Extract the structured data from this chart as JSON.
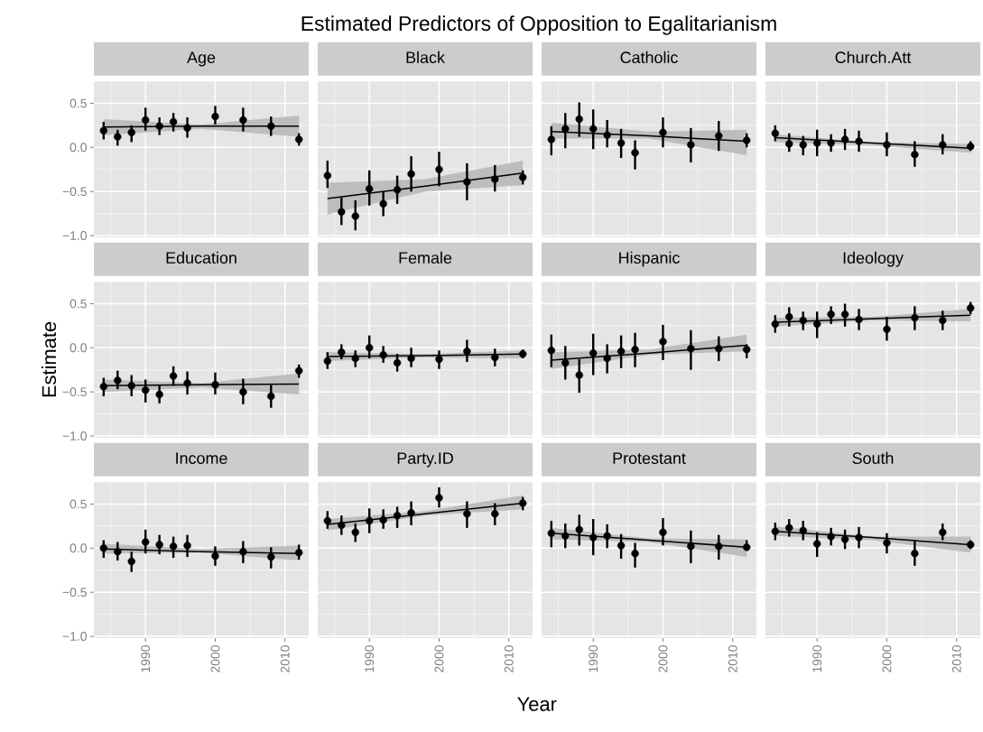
{
  "chart_data": [
    {
      "type": "scatter",
      "title": "Age",
      "annotations": [
        "Estimated Predictors of Opposition to Egalitarianism"
      ],
      "x": [
        1984,
        1986,
        1988,
        1990,
        1992,
        1994,
        1996,
        2000,
        2004,
        2008,
        2012
      ],
      "xlim": [
        1982.6,
        2013.4
      ],
      "ylim": [
        -1.02,
        0.75
      ],
      "xticks": [
        1990,
        2000,
        2010
      ],
      "yticks": [
        {
          "value": -1,
          "label": "−1.0"
        },
        {
          "value": -0.5,
          "label": "−0.5"
        },
        {
          "value": 0,
          "label": "0.0"
        },
        {
          "value": 0.5,
          "label": "0.5"
        }
      ],
      "grid": true,
      "tick_labels": "y",
      "series": [
        {
          "type": "line",
          "color": "#000000",
          "x": [
            1984,
            1998,
            2012
          ],
          "values": [
            0.23,
            0.24,
            0.24
          ],
          "lower": [
            0.14,
            0.21,
            0.12
          ],
          "upper": [
            0.32,
            0.26,
            0.36
          ]
        },
        {
          "color": "#000000",
          "marker": "circle",
          "values": [
            0.19,
            0.12,
            0.17,
            0.31,
            0.24,
            0.29,
            0.22,
            0.35,
            0.31,
            0.24,
            0.09
          ],
          "errors": [
            [
              0.09,
              0.29
            ],
            [
              0.02,
              0.2
            ],
            [
              0.06,
              0.25
            ],
            [
              0.19,
              0.45
            ],
            [
              0.14,
              0.34
            ],
            [
              0.18,
              0.39
            ],
            [
              0.11,
              0.34
            ],
            [
              0.26,
              0.47
            ],
            [
              0.18,
              0.45
            ],
            [
              0.13,
              0.35
            ],
            [
              0.02,
              0.16
            ]
          ]
        }
      ]
    },
    {
      "type": "scatter",
      "title": "Black",
      "x": [
        1984,
        1986,
        1988,
        1990,
        1992,
        1994,
        1996,
        2000,
        2004,
        2008,
        2012
      ],
      "xlim": [
        1982.6,
        2013.4
      ],
      "ylim": [
        -1.02,
        0.75
      ],
      "xticks": [
        1990,
        2000,
        2010
      ],
      "yticks": [
        -1,
        -0.5,
        0,
        0.5
      ],
      "grid": true,
      "tick_labels": false,
      "series": [
        {
          "type": "line",
          "color": "#000000",
          "x": [
            1984,
            1998,
            2012
          ],
          "values": [
            -0.58,
            -0.44,
            -0.29
          ],
          "lower": [
            -0.76,
            -0.5,
            -0.43
          ],
          "upper": [
            -0.4,
            -0.36,
            -0.15
          ]
        },
        {
          "color": "#000000",
          "marker": "circle",
          "values": [
            -0.32,
            -0.73,
            -0.78,
            -0.47,
            -0.64,
            -0.48,
            -0.3,
            -0.25,
            -0.39,
            -0.36,
            -0.34
          ],
          "errors": [
            [
              -0.46,
              -0.15
            ],
            [
              -0.88,
              -0.57
            ],
            [
              -0.94,
              -0.6
            ],
            [
              -0.66,
              -0.26
            ],
            [
              -0.78,
              -0.5
            ],
            [
              -0.64,
              -0.32
            ],
            [
              -0.5,
              -0.1
            ],
            [
              -0.44,
              -0.05
            ],
            [
              -0.6,
              -0.18
            ],
            [
              -0.5,
              -0.2
            ],
            [
              -0.42,
              -0.26
            ]
          ]
        }
      ]
    },
    {
      "type": "scatter",
      "title": "Catholic",
      "x": [
        1984,
        1986,
        1988,
        1990,
        1992,
        1994,
        1996,
        2000,
        2004,
        2008,
        2012
      ],
      "xlim": [
        1982.6,
        2013.4
      ],
      "ylim": [
        -1.02,
        0.75
      ],
      "xticks": [
        1990,
        2000,
        2010
      ],
      "yticks": [
        -1,
        -0.5,
        0,
        0.5
      ],
      "grid": true,
      "tick_labels": false,
      "series": [
        {
          "type": "line",
          "color": "#000000",
          "x": [
            1984,
            1998,
            2012
          ],
          "values": [
            0.18,
            0.13,
            0.07
          ],
          "lower": [
            0.1,
            0.1,
            -0.09
          ],
          "upper": [
            0.28,
            0.18,
            0.2
          ]
        },
        {
          "color": "#000000",
          "marker": "circle",
          "values": [
            0.09,
            0.21,
            0.32,
            0.21,
            0.14,
            0.05,
            -0.06,
            0.17,
            0.03,
            0.13,
            0.08
          ],
          "errors": [
            [
              -0.09,
              0.24
            ],
            [
              -0.01,
              0.39
            ],
            [
              0.12,
              0.51
            ],
            [
              -0.02,
              0.43
            ],
            [
              0.0,
              0.31
            ],
            [
              -0.12,
              0.21
            ],
            [
              -0.25,
              0.08
            ],
            [
              0.0,
              0.34
            ],
            [
              -0.17,
              0.22
            ],
            [
              -0.04,
              0.3
            ],
            [
              0.0,
              0.16
            ]
          ]
        }
      ]
    },
    {
      "type": "scatter",
      "title": "Church.Att",
      "x": [
        1984,
        1986,
        1988,
        1990,
        1992,
        1994,
        1996,
        2000,
        2004,
        2008,
        2012
      ],
      "xlim": [
        1982.6,
        2013.4
      ],
      "ylim": [
        -1.02,
        0.75
      ],
      "xticks": [
        1990,
        2000,
        2010
      ],
      "yticks": [
        -1,
        -0.5,
        0,
        0.5
      ],
      "grid": true,
      "tick_labels": false,
      "series": [
        {
          "type": "line",
          "color": "#000000",
          "x": [
            1984,
            1998,
            2012
          ],
          "values": [
            0.11,
            0.05,
            -0.01
          ],
          "lower": [
            0.06,
            0.02,
            -0.06
          ],
          "upper": [
            0.15,
            0.06,
            0.04
          ]
        },
        {
          "color": "#000000",
          "marker": "circle",
          "values": [
            0.16,
            0.04,
            0.03,
            0.05,
            0.05,
            0.09,
            0.07,
            0.03,
            -0.08,
            0.03,
            0.01
          ],
          "errors": [
            [
              0.07,
              0.25
            ],
            [
              -0.05,
              0.16
            ],
            [
              -0.09,
              0.13
            ],
            [
              -0.1,
              0.2
            ],
            [
              -0.05,
              0.15
            ],
            [
              -0.03,
              0.21
            ],
            [
              -0.05,
              0.19
            ],
            [
              -0.1,
              0.17
            ],
            [
              -0.22,
              0.07
            ],
            [
              -0.08,
              0.15
            ],
            [
              -0.04,
              0.07
            ]
          ]
        }
      ]
    },
    {
      "type": "scatter",
      "title": "Education",
      "ylabel": "Estimate",
      "x": [
        1984,
        1986,
        1988,
        1990,
        1992,
        1994,
        1996,
        2000,
        2004,
        2008,
        2012
      ],
      "xlim": [
        1982.6,
        2013.4
      ],
      "ylim": [
        -1.02,
        0.75
      ],
      "xticks": [
        1990,
        2000,
        2010
      ],
      "yticks": [
        {
          "value": -1,
          "label": "−1.0"
        },
        {
          "value": -0.5,
          "label": "−0.5"
        },
        {
          "value": 0,
          "label": "0.0"
        },
        {
          "value": 0.5,
          "label": "0.5"
        }
      ],
      "grid": true,
      "tick_labels": "y",
      "series": [
        {
          "type": "line",
          "color": "#000000",
          "x": [
            1984,
            1998,
            2012
          ],
          "values": [
            -0.43,
            -0.42,
            -0.41
          ],
          "lower": [
            -0.5,
            -0.45,
            -0.53
          ],
          "upper": [
            -0.36,
            -0.4,
            -0.29
          ]
        },
        {
          "color": "#000000",
          "marker": "circle",
          "values": [
            -0.44,
            -0.37,
            -0.43,
            -0.48,
            -0.53,
            -0.32,
            -0.4,
            -0.42,
            -0.5,
            -0.55,
            -0.26
          ],
          "errors": [
            [
              -0.55,
              -0.34
            ],
            [
              -0.47,
              -0.26
            ],
            [
              -0.55,
              -0.31
            ],
            [
              -0.62,
              -0.36
            ],
            [
              -0.63,
              -0.42
            ],
            [
              -0.43,
              -0.21
            ],
            [
              -0.53,
              -0.27
            ],
            [
              -0.53,
              -0.28
            ],
            [
              -0.64,
              -0.35
            ],
            [
              -0.68,
              -0.42
            ],
            [
              -0.34,
              -0.19
            ]
          ]
        }
      ]
    },
    {
      "type": "scatter",
      "title": "Female",
      "x": [
        1984,
        1986,
        1988,
        1990,
        1992,
        1994,
        1996,
        2000,
        2004,
        2008,
        2012
      ],
      "xlim": [
        1982.6,
        2013.4
      ],
      "ylim": [
        -1.02,
        0.75
      ],
      "xticks": [
        1990,
        2000,
        2010
      ],
      "yticks": [
        -1,
        -0.5,
        0,
        0.5
      ],
      "grid": true,
      "tick_labels": false,
      "series": [
        {
          "type": "line",
          "color": "#000000",
          "x": [
            1984,
            1998,
            2012
          ],
          "values": [
            -0.1,
            -0.09,
            -0.07
          ],
          "lower": [
            -0.15,
            -0.11,
            -0.12
          ],
          "upper": [
            -0.05,
            -0.07,
            -0.03
          ]
        },
        {
          "color": "#000000",
          "marker": "circle",
          "values": [
            -0.15,
            -0.05,
            -0.12,
            0.0,
            -0.08,
            -0.17,
            -0.12,
            -0.13,
            -0.04,
            -0.11,
            -0.07
          ],
          "errors": [
            [
              -0.24,
              -0.05
            ],
            [
              -0.13,
              0.04
            ],
            [
              -0.22,
              -0.03
            ],
            [
              -0.12,
              0.14
            ],
            [
              -0.17,
              0.02
            ],
            [
              -0.27,
              -0.07
            ],
            [
              -0.22,
              0.0
            ],
            [
              -0.24,
              -0.03
            ],
            [
              -0.16,
              0.09
            ],
            [
              -0.21,
              -0.01
            ],
            [
              -0.12,
              -0.02
            ]
          ]
        }
      ]
    },
    {
      "type": "scatter",
      "title": "Hispanic",
      "x": [
        1984,
        1986,
        1988,
        1990,
        1992,
        1994,
        1996,
        2000,
        2004,
        2008,
        2012
      ],
      "xlim": [
        1982.6,
        2013.4
      ],
      "ylim": [
        -1.02,
        0.75
      ],
      "xticks": [
        1990,
        2000,
        2010
      ],
      "yticks": [
        -1,
        -0.5,
        0,
        0.5
      ],
      "grid": true,
      "tick_labels": false,
      "series": [
        {
          "type": "line",
          "color": "#000000",
          "x": [
            1984,
            1998,
            2012
          ],
          "values": [
            -0.14,
            -0.06,
            0.03
          ],
          "lower": [
            -0.24,
            -0.08,
            -0.04
          ],
          "upper": [
            -0.05,
            -0.02,
            0.15
          ]
        },
        {
          "color": "#000000",
          "marker": "circle",
          "values": [
            -0.03,
            -0.17,
            -0.31,
            -0.06,
            -0.12,
            -0.04,
            -0.02,
            0.07,
            -0.01,
            -0.01,
            -0.02
          ],
          "errors": [
            [
              -0.22,
              0.15
            ],
            [
              -0.36,
              0.02
            ],
            [
              -0.51,
              -0.13
            ],
            [
              -0.31,
              0.16
            ],
            [
              -0.29,
              0.04
            ],
            [
              -0.23,
              0.14
            ],
            [
              -0.22,
              0.17
            ],
            [
              -0.14,
              0.26
            ],
            [
              -0.25,
              0.2
            ],
            [
              -0.15,
              0.13
            ],
            [
              -0.12,
              0.04
            ]
          ]
        }
      ]
    },
    {
      "type": "scatter",
      "title": "Ideology",
      "x": [
        1984,
        1986,
        1988,
        1990,
        1992,
        1994,
        1996,
        2000,
        2004,
        2008,
        2012
      ],
      "xlim": [
        1982.6,
        2013.4
      ],
      "ylim": [
        -1.02,
        0.75
      ],
      "xticks": [
        1990,
        2000,
        2010
      ],
      "yticks": [
        -1,
        -0.5,
        0,
        0.5
      ],
      "grid": true,
      "tick_labels": false,
      "series": [
        {
          "type": "line",
          "color": "#000000",
          "x": [
            1984,
            1998,
            2012
          ],
          "values": [
            0.29,
            0.33,
            0.37
          ],
          "lower": [
            0.24,
            0.31,
            0.3
          ],
          "upper": [
            0.34,
            0.35,
            0.44
          ]
        },
        {
          "color": "#000000",
          "marker": "circle",
          "values": [
            0.27,
            0.35,
            0.31,
            0.27,
            0.38,
            0.38,
            0.32,
            0.21,
            0.34,
            0.31,
            0.45
          ],
          "errors": [
            [
              0.17,
              0.37
            ],
            [
              0.24,
              0.46
            ],
            [
              0.2,
              0.41
            ],
            [
              0.11,
              0.41
            ],
            [
              0.27,
              0.47
            ],
            [
              0.24,
              0.5
            ],
            [
              0.2,
              0.44
            ],
            [
              0.08,
              0.35
            ],
            [
              0.2,
              0.47
            ],
            [
              0.2,
              0.42
            ],
            [
              0.38,
              0.52
            ]
          ]
        }
      ]
    },
    {
      "type": "scatter",
      "title": "Income",
      "x": [
        1984,
        1986,
        1988,
        1990,
        1992,
        1994,
        1996,
        2000,
        2004,
        2008,
        2012
      ],
      "xlim": [
        1982.6,
        2013.4
      ],
      "ylim": [
        -1.02,
        0.75
      ],
      "xticks": [
        1990,
        2000,
        2010
      ],
      "yticks": [
        {
          "value": -1,
          "label": "−1.0"
        },
        {
          "value": -0.5,
          "label": "−0.5"
        },
        {
          "value": 0,
          "label": "0.0"
        },
        {
          "value": 0.5,
          "label": "0.5"
        }
      ],
      "grid": true,
      "series": [
        {
          "type": "line",
          "color": "#000000",
          "x": [
            1984,
            1998,
            2012
          ],
          "values": [
            -0.01,
            -0.04,
            -0.06
          ],
          "lower": [
            -0.06,
            -0.05,
            -0.14
          ],
          "upper": [
            0.05,
            -0.01,
            0.03
          ]
        },
        {
          "color": "#000000",
          "marker": "circle",
          "values": [
            0.0,
            -0.04,
            -0.15,
            0.07,
            0.04,
            0.02,
            0.03,
            -0.09,
            -0.04,
            -0.1,
            -0.05
          ],
          "errors": [
            [
              -0.11,
              0.09
            ],
            [
              -0.14,
              0.07
            ],
            [
              -0.27,
              -0.04
            ],
            [
              -0.06,
              0.21
            ],
            [
              -0.07,
              0.15
            ],
            [
              -0.11,
              0.13
            ],
            [
              -0.1,
              0.15
            ],
            [
              -0.2,
              0.02
            ],
            [
              -0.17,
              0.08
            ],
            [
              -0.23,
              0.01
            ],
            [
              -0.13,
              0.04
            ]
          ]
        }
      ]
    },
    {
      "type": "scatter",
      "title": "Party.ID",
      "xlabel": "Year",
      "x": [
        1984,
        1986,
        1988,
        1990,
        1992,
        1994,
        1996,
        2000,
        2004,
        2008,
        2012
      ],
      "xlim": [
        1982.6,
        2013.4
      ],
      "ylim": [
        -1.02,
        0.75
      ],
      "xticks": [
        1990,
        2000,
        2010
      ],
      "yticks": [
        -1,
        -0.5,
        0,
        0.5
      ],
      "grid": true,
      "tick_labels": "x",
      "series": [
        {
          "type": "line",
          "color": "#000000",
          "x": [
            1984,
            1998,
            2012
          ],
          "values": [
            0.27,
            0.39,
            0.51
          ],
          "lower": [
            0.2,
            0.37,
            0.44
          ],
          "upper": [
            0.33,
            0.42,
            0.6
          ]
        },
        {
          "color": "#000000",
          "marker": "circle",
          "values": [
            0.31,
            0.26,
            0.18,
            0.31,
            0.32,
            0.37,
            0.4,
            0.57,
            0.39,
            0.39,
            0.51
          ],
          "errors": [
            [
              0.22,
              0.42
            ],
            [
              0.15,
              0.37
            ],
            [
              0.07,
              0.28
            ],
            [
              0.17,
              0.45
            ],
            [
              0.22,
              0.44
            ],
            [
              0.23,
              0.47
            ],
            [
              0.26,
              0.53
            ],
            [
              0.46,
              0.69
            ],
            [
              0.23,
              0.53
            ],
            [
              0.26,
              0.51
            ],
            [
              0.43,
              0.58
            ]
          ]
        }
      ]
    },
    {
      "type": "scatter",
      "title": "Protestant",
      "x": [
        1984,
        1986,
        1988,
        1990,
        1992,
        1994,
        1996,
        2000,
        2004,
        2008,
        2012
      ],
      "xlim": [
        1982.6,
        2013.4
      ],
      "ylim": [
        -1.02,
        0.75
      ],
      "xticks": [
        1990,
        2000,
        2010
      ],
      "yticks": [
        -1,
        -0.5,
        0,
        0.5
      ],
      "grid": true,
      "tick_labels": "x",
      "series": [
        {
          "type": "line",
          "color": "#000000",
          "x": [
            1984,
            1998,
            2012
          ],
          "values": [
            0.17,
            0.09,
            0.01
          ],
          "lower": [
            0.1,
            0.07,
            -0.1
          ],
          "upper": [
            0.23,
            0.11,
            0.1
          ]
        },
        {
          "color": "#000000",
          "marker": "circle",
          "values": [
            0.17,
            0.14,
            0.21,
            0.12,
            0.14,
            0.03,
            -0.06,
            0.18,
            0.02,
            0.02,
            0.01
          ],
          "errors": [
            [
              0.01,
              0.31
            ],
            [
              0.0,
              0.28
            ],
            [
              0.03,
              0.38
            ],
            [
              -0.08,
              0.33
            ],
            [
              0.0,
              0.27
            ],
            [
              -0.12,
              0.16
            ],
            [
              -0.22,
              0.06
            ],
            [
              0.03,
              0.34
            ],
            [
              -0.17,
              0.2
            ],
            [
              -0.13,
              0.15
            ],
            [
              -0.03,
              0.09
            ]
          ]
        }
      ]
    },
    {
      "type": "scatter",
      "title": "South",
      "x": [
        1984,
        1986,
        1988,
        1990,
        1992,
        1994,
        1996,
        2000,
        2004,
        2008,
        2012
      ],
      "xlim": [
        1982.6,
        2013.4
      ],
      "ylim": [
        -1.02,
        0.75
      ],
      "xticks": [
        1990,
        2000,
        2010
      ],
      "yticks": [
        -1,
        -0.5,
        0,
        0.5
      ],
      "grid": true,
      "tick_labels": "x",
      "series": [
        {
          "type": "line",
          "color": "#000000",
          "x": [
            1984,
            1998,
            2012
          ],
          "values": [
            0.19,
            0.12,
            0.04
          ],
          "lower": [
            0.14,
            0.09,
            -0.05
          ],
          "upper": [
            0.25,
            0.13,
            0.13
          ]
        },
        {
          "color": "#000000",
          "marker": "circle",
          "values": [
            0.19,
            0.23,
            0.2,
            0.05,
            0.13,
            0.1,
            0.12,
            0.06,
            -0.06,
            0.18,
            0.04
          ],
          "errors": [
            [
              0.09,
              0.29
            ],
            [
              0.13,
              0.33
            ],
            [
              0.09,
              0.31
            ],
            [
              -0.1,
              0.18
            ],
            [
              0.03,
              0.23
            ],
            [
              -0.01,
              0.21
            ],
            [
              0.0,
              0.24
            ],
            [
              -0.06,
              0.17
            ],
            [
              -0.2,
              0.08
            ],
            [
              0.09,
              0.28
            ],
            [
              -0.01,
              0.09
            ]
          ]
        }
      ]
    }
  ]
}
